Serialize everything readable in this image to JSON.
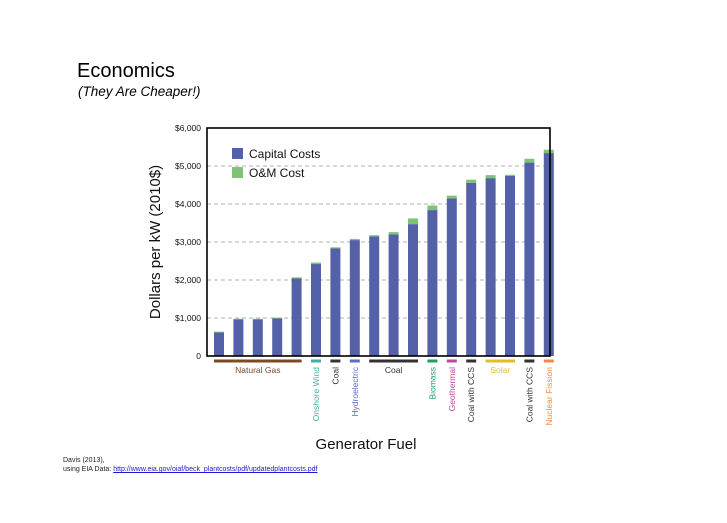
{
  "slide": {
    "title": "Economics",
    "subtitle": "(They Are Cheaper!)"
  },
  "citation": {
    "line1": "Davis (2013),",
    "prefix": "using EIA Data: ",
    "link": "http://www.eia.gov/oiaf/beck_plantcosts/pdf/updatedplantcosts.pdf"
  },
  "chart_data": {
    "type": "bar",
    "stacked": true,
    "xlabel": "Generator Fuel",
    "ylabel": "Dollars per kW (2010$)",
    "ylim": [
      0,
      6000
    ],
    "yticks": [
      0,
      1000,
      2000,
      3000,
      4000,
      5000,
      6000
    ],
    "ytick_labels": [
      "0",
      "$1,000",
      "$2,000",
      "$3,000",
      "$4,000",
      "$5,000",
      "$6,000"
    ],
    "grid": true,
    "legend_position": "top-left",
    "series": [
      {
        "name": "Capital Costs",
        "color": "#5460a8",
        "values": [
          620,
          960,
          960,
          990,
          2040,
          2420,
          2830,
          3050,
          3150,
          3200,
          3470,
          3840,
          4150,
          4560,
          4680,
          4740,
          5090,
          5340
        ]
      },
      {
        "name": "O&M Cost",
        "color": "#7ec474",
        "values": [
          20,
          20,
          20,
          20,
          30,
          40,
          30,
          30,
          30,
          60,
          150,
          120,
          70,
          80,
          80,
          30,
          100,
          90
        ]
      }
    ],
    "groups": [
      {
        "label": "Natural Gas",
        "color": "#7d4a24",
        "start": 0,
        "end": 4,
        "orientation": "horizontal"
      },
      {
        "label": "Onshore Wind",
        "color": "#42b0a8",
        "start": 5,
        "end": 5,
        "orientation": "vertical"
      },
      {
        "label": "Coal",
        "color": "#333333",
        "start": 6,
        "end": 6,
        "orientation": "vertical"
      },
      {
        "label": "Hydroelectric",
        "color": "#5a6ec8",
        "start": 7,
        "end": 7,
        "orientation": "vertical"
      },
      {
        "label": "Coal",
        "color": "#333333",
        "start": 8,
        "end": 10,
        "orientation": "horizontal"
      },
      {
        "label": "Biomass",
        "color": "#1e9e6a",
        "start": 11,
        "end": 11,
        "orientation": "vertical"
      },
      {
        "label": "Geothermal",
        "color": "#c0479e",
        "start": 12,
        "end": 12,
        "orientation": "vertical"
      },
      {
        "label": "Coal with CCS",
        "color": "#333333",
        "start": 13,
        "end": 13,
        "orientation": "vertical"
      },
      {
        "label": "Solar",
        "color": "#e3bc2a",
        "start": 14,
        "end": 15,
        "orientation": "horizontal"
      },
      {
        "label": "Coal with CCS",
        "color": "#333333",
        "start": 16,
        "end": 16,
        "orientation": "vertical"
      },
      {
        "label": "Nuclear Fission",
        "color": "#f0894a",
        "start": 17,
        "end": 17,
        "orientation": "vertical"
      }
    ]
  }
}
